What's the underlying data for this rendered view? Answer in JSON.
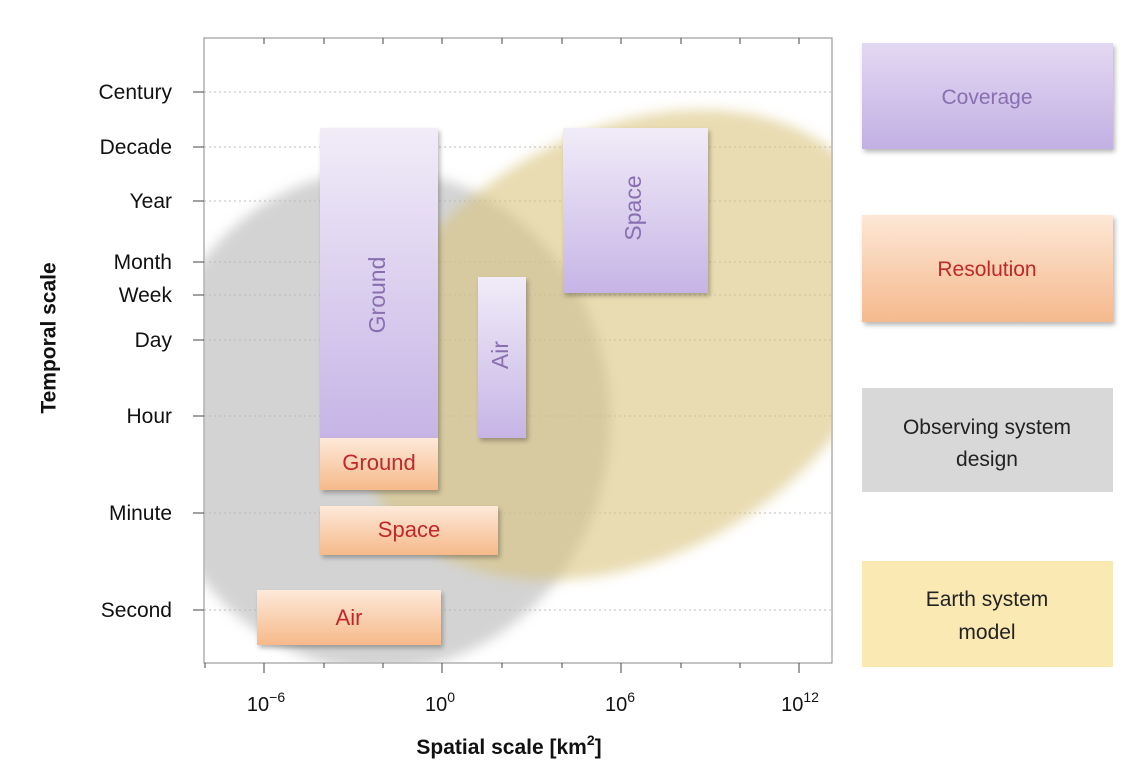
{
  "diagram": {
    "y_axis_title": "Temporal scale",
    "x_axis_title_main": "Spatial scale [km",
    "x_axis_title_sup": "2",
    "x_axis_title_end": "]",
    "y_ticks": [
      "Century",
      "Decade",
      "Year",
      "Month",
      "Week",
      "Day",
      "Hour",
      "Minute",
      "Second"
    ],
    "x_ticks": [
      {
        "base": "10",
        "exp": "−6"
      },
      {
        "base": "10",
        "exp": "0"
      },
      {
        "base": "10",
        "exp": "6"
      },
      {
        "base": "10",
        "exp": "12"
      }
    ],
    "coverage_bars": [
      {
        "label": "Ground",
        "vertical": true
      },
      {
        "label": "Air",
        "vertical": true
      },
      {
        "label": "Space",
        "vertical": true
      }
    ],
    "resolution_bars": [
      {
        "label": "Ground"
      },
      {
        "label": "Space"
      },
      {
        "label": "Air"
      }
    ],
    "legend": {
      "coverage": "Coverage",
      "resolution": "Resolution",
      "observing_line1": "Observing system",
      "observing_line2": "design",
      "earth_line1": "Earth system",
      "earth_line2": "model"
    },
    "colors": {
      "coverage_text": "#8a6fb0",
      "resolution_text": "#c0282a",
      "gray_ellipse": "#b9b9b9",
      "tan_ellipse": "#d8c27a"
    }
  }
}
